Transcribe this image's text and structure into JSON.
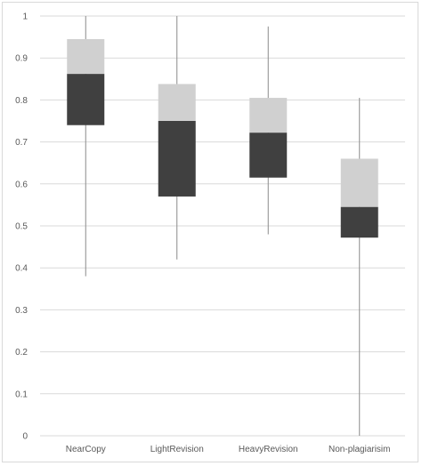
{
  "chart_data": {
    "type": "box",
    "categories": [
      "NearCopy",
      "LightRevision",
      "HeavyRevision",
      "Non-plagiarisim"
    ],
    "series": [
      {
        "min": 0.38,
        "q1": 0.74,
        "median": 0.862,
        "q3": 0.945,
        "max": 1.0
      },
      {
        "min": 0.42,
        "q1": 0.57,
        "median": 0.75,
        "q3": 0.838,
        "max": 1.0
      },
      {
        "min": 0.48,
        "q1": 0.615,
        "median": 0.722,
        "q3": 0.805,
        "max": 0.975
      },
      {
        "min": 0.0,
        "q1": 0.472,
        "median": 0.545,
        "q3": 0.66,
        "max": 0.805
      }
    ],
    "y_ticks": [
      "0",
      "0.1",
      "0.2",
      "0.3",
      "0.4",
      "0.5",
      "0.6",
      "0.7",
      "0.8",
      "0.9",
      "1"
    ],
    "ylim": [
      0,
      1
    ],
    "grid": true,
    "colors": {
      "lower_box": "#404040",
      "upper_box": "#d0d0d0",
      "whisker": "#8c8c8c",
      "grid": "#d9d9d9"
    }
  }
}
